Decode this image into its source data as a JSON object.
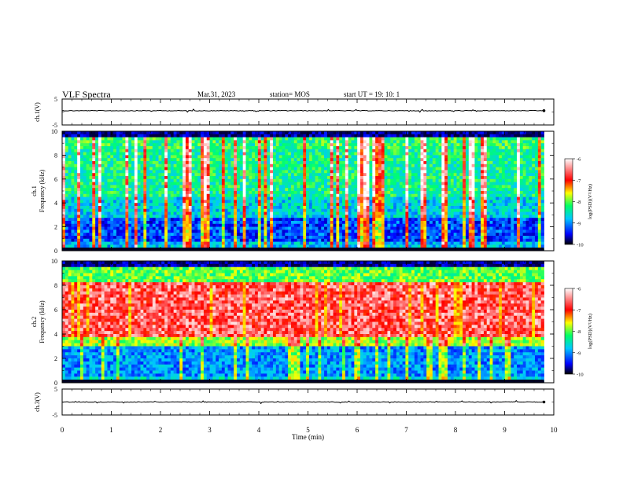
{
  "header": {
    "title": "VLF Spectra",
    "date": "Mar.31, 2023",
    "station": "station= MOS",
    "start_ut": "start  UT  =   19: 10: 1"
  },
  "colors": {
    "colormap": [
      "#000066",
      "#0000ff",
      "#00c8ff",
      "#00ff66",
      "#ffff00",
      "#ff8c00",
      "#ff0000",
      "#ffffff"
    ],
    "trace": "#000000",
    "frame": "#000000"
  },
  "chart_data": [
    {
      "type": "line",
      "ylabel": "ch.1(V)",
      "ylim": [
        -5,
        5
      ],
      "yticks": [
        "5",
        "-5"
      ],
      "x_range": [
        0,
        10
      ],
      "trace_level": 0.5,
      "trace_end": 9.8
    },
    {
      "type": "heatmap",
      "ylabel_line1": "ch.1",
      "ylabel_line2": "Frequency (kHz)",
      "ylim": [
        0,
        10
      ],
      "yticks": [
        "0",
        "2",
        "4",
        "6",
        "8",
        "10"
      ],
      "x_range": [
        0,
        9.8
      ],
      "colorbar": {
        "label": "log(PSD)(V²/Hz)",
        "ticks": [
          "-6",
          "-7",
          "-8",
          "-9",
          "-10"
        ],
        "range": [
          -10,
          -6
        ]
      }
    },
    {
      "type": "heatmap",
      "ylabel_line1": "ch.2",
      "ylabel_line2": "Frequency (kHz)",
      "ylim": [
        0,
        10
      ],
      "yticks": [
        "0",
        "2",
        "4",
        "6",
        "8",
        "10"
      ],
      "x_range": [
        0,
        9.8
      ],
      "colorbar": {
        "label": "log(PSD)(V²/Hz)",
        "ticks": [
          "-6",
          "-7",
          "-8",
          "-9",
          "-10"
        ],
        "range": [
          -10,
          -6
        ]
      }
    },
    {
      "type": "line",
      "ylabel": "ch.3(V)",
      "ylim": [
        -5,
        5
      ],
      "yticks": [
        "5",
        "-5"
      ],
      "x_range": [
        0,
        10
      ],
      "trace_level": 0.0,
      "trace_end": 9.8,
      "xlabel": "Time  (min)",
      "xticks": [
        "0",
        "1",
        "2",
        "3",
        "4",
        "5",
        "6",
        "7",
        "8",
        "9",
        "10"
      ]
    }
  ]
}
